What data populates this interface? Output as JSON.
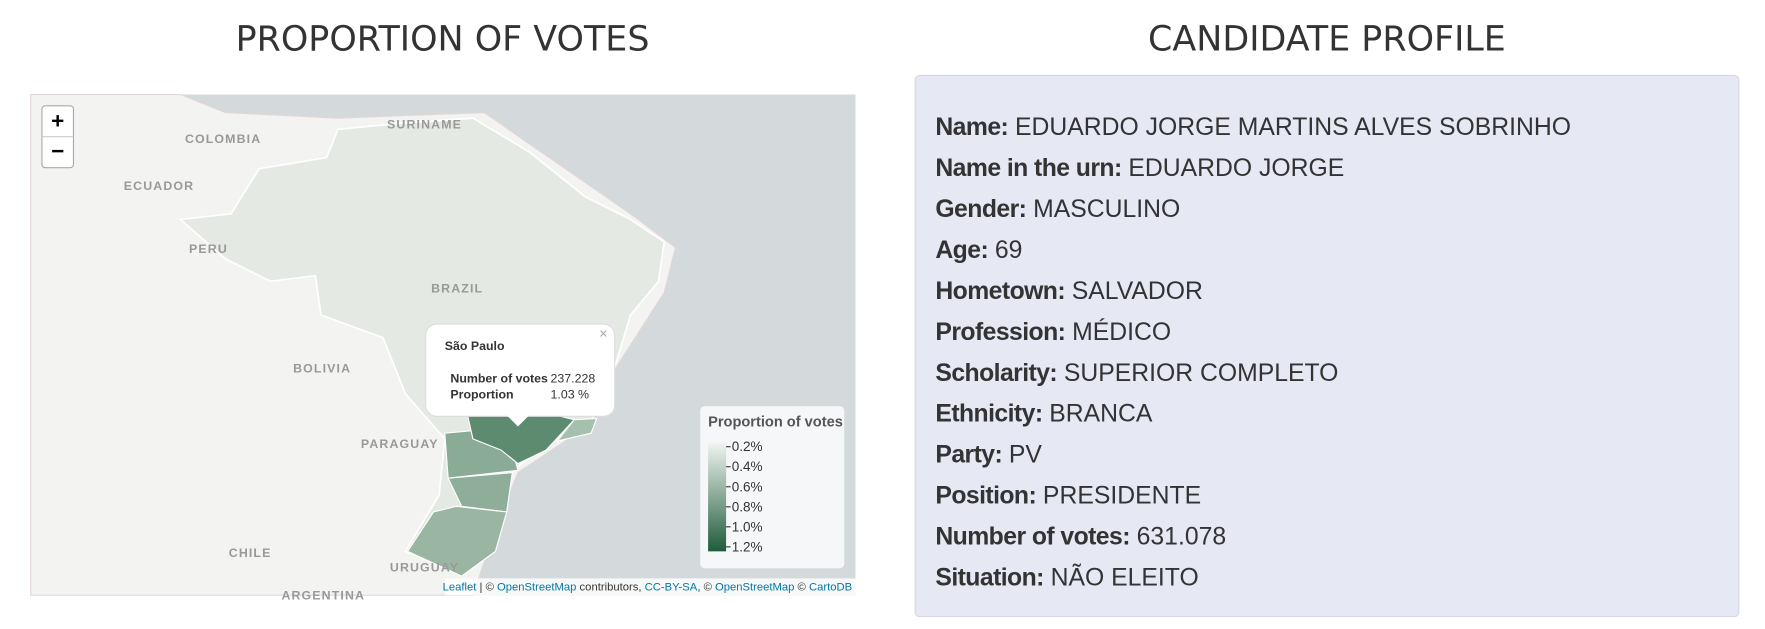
{
  "left_title": "PROPORTION OF VOTES",
  "right_title": "CANDIDATE PROFILE",
  "map": {
    "zoom_in": "+",
    "zoom_out": "−",
    "labels": [
      "COLOMBIA",
      "SURINAME",
      "ECUADOR",
      "PERU",
      "BRAZIL",
      "BOLIVIA",
      "PARAGUAY",
      "CHILE",
      "URUGUAY",
      "ARGENTINA"
    ],
    "popup": {
      "title": "São Paulo",
      "close": "×",
      "rows": [
        [
          "Number of votes",
          "237.228"
        ],
        [
          "Proportion",
          "1.03 %"
        ]
      ]
    },
    "legend": {
      "title": "Proportion of votes",
      "labels": [
        "0.2%",
        "0.4%",
        "0.6%",
        "0.8%",
        "1.0%",
        "1.2%"
      ]
    },
    "attribution": [
      "Leaflet",
      " | © ",
      "OpenStreetMap",
      " contributors, ",
      "CC-BY-SA",
      ", © ",
      "OpenStreetMap",
      " © ",
      "CartoDB"
    ]
  },
  "profile": [
    {
      "label": "Name:",
      "value": "EDUARDO JORGE MARTINS ALVES SOBRINHO"
    },
    {
      "label": "Name in the urn:",
      "value": "EDUARDO JORGE"
    },
    {
      "label": "Gender:",
      "value": "MASCULINO"
    },
    {
      "label": "Age:",
      "value": "69"
    },
    {
      "label": "Hometown:",
      "value": "SALVADOR"
    },
    {
      "label": "Profession:",
      "value": "MÉDICO"
    },
    {
      "label": "Scholarity:",
      "value": "SUPERIOR COMPLETO"
    },
    {
      "label": "Ethnicity:",
      "value": "BRANCA"
    },
    {
      "label": "Party:",
      "value": "PV"
    },
    {
      "label": "Position:",
      "value": "PRESIDENTE"
    },
    {
      "label": "Number of votes:",
      "value": "631.078"
    },
    {
      "label": "Situation:",
      "value": "NÃO ELEITO"
    }
  ]
}
